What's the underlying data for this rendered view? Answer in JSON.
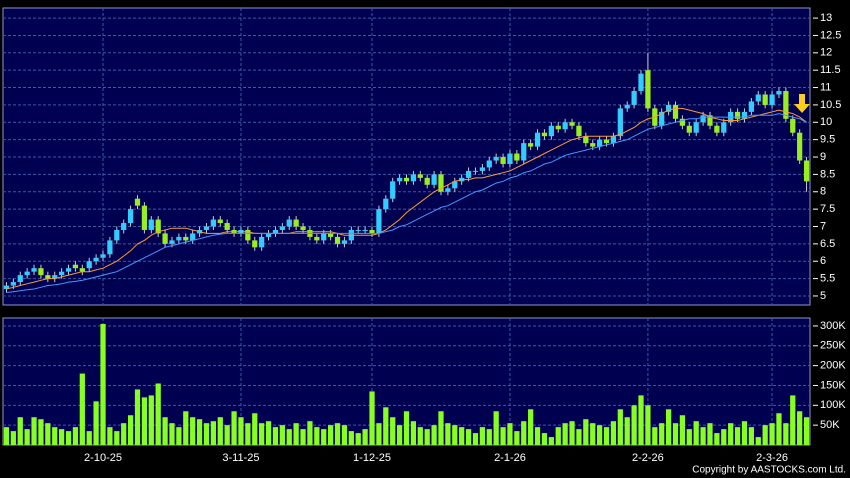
{
  "chart_data": {
    "type": "candlestick",
    "annotation": "Copyright by AASTOCKS.com Ltd.",
    "categories": [
      null,
      null,
      null,
      null,
      null,
      null,
      null,
      null,
      null,
      null,
      null,
      null,
      null,
      null,
      "2-10-25",
      null,
      null,
      null,
      null,
      null,
      null,
      null,
      null,
      null,
      null,
      null,
      null,
      null,
      null,
      null,
      null,
      null,
      null,
      null,
      "3-11-25",
      null,
      null,
      null,
      null,
      null,
      null,
      null,
      null,
      null,
      null,
      null,
      null,
      null,
      null,
      null,
      null,
      null,
      null,
      "1-12-25",
      null,
      null,
      null,
      null,
      null,
      null,
      null,
      null,
      null,
      null,
      null,
      null,
      null,
      null,
      null,
      null,
      null,
      null,
      null,
      "2-1-26",
      null,
      null,
      null,
      null,
      null,
      null,
      null,
      null,
      null,
      null,
      null,
      null,
      null,
      null,
      null,
      null,
      null,
      null,
      null,
      "2-2-26",
      null,
      null,
      null,
      null,
      null,
      null,
      null,
      null,
      null,
      null,
      null,
      null,
      null,
      null,
      null,
      null,
      null,
      "2-3-26",
      null,
      null,
      null,
      null,
      null
    ],
    "open": [
      5.2,
      5.3,
      5.4,
      5.6,
      5.7,
      5.8,
      5.6,
      5.5,
      5.6,
      5.7,
      5.9,
      5.8,
      5.8,
      6.0,
      6.1,
      6.2,
      6.6,
      6.9,
      7.1,
      7.8,
      7.6,
      6.9,
      7.2,
      6.8,
      6.5,
      6.6,
      6.7,
      6.6,
      6.8,
      6.9,
      7.0,
      7.2,
      7.1,
      6.9,
      6.8,
      6.9,
      6.6,
      6.4,
      6.7,
      6.8,
      6.9,
      7.0,
      7.2,
      7.0,
      6.9,
      6.7,
      6.6,
      6.8,
      6.7,
      6.5,
      6.6,
      6.9,
      6.9,
      6.9,
      6.8,
      7.5,
      7.8,
      8.3,
      8.4,
      8.3,
      8.5,
      8.4,
      8.2,
      8.5,
      8.0,
      8.1,
      8.3,
      8.4,
      8.6,
      8.6,
      8.7,
      8.9,
      9.0,
      8.8,
      9.1,
      8.9,
      9.4,
      9.3,
      9.7,
      9.6,
      9.9,
      9.8,
      10.0,
      9.9,
      9.6,
      9.4,
      9.3,
      9.5,
      9.4,
      9.6,
      10.4,
      10.5,
      10.9,
      11.5,
      10.4,
      9.9,
      10.3,
      10.5,
      10.1,
      9.9,
      9.7,
      10.0,
      10.2,
      9.9,
      9.7,
      10.0,
      10.3,
      10.1,
      10.3,
      10.6,
      10.8,
      10.5,
      10.8,
      10.9,
      10.1,
      9.7,
      8.9
    ],
    "high": [
      5.4,
      5.5,
      5.7,
      5.8,
      5.9,
      5.9,
      5.7,
      5.7,
      5.8,
      5.9,
      6.0,
      5.9,
      6.1,
      6.2,
      6.3,
      6.7,
      7.0,
      7.2,
      7.6,
      7.9,
      7.7,
      7.3,
      7.3,
      6.9,
      6.7,
      6.8,
      6.8,
      6.9,
      7.0,
      7.1,
      7.3,
      7.3,
      7.2,
      7.0,
      7.0,
      7.0,
      6.7,
      6.8,
      6.9,
      7.0,
      7.1,
      7.3,
      7.3,
      7.1,
      7.0,
      6.8,
      6.9,
      6.9,
      6.8,
      6.7,
      7.0,
      7.0,
      7.0,
      7.0,
      7.6,
      7.9,
      8.4,
      8.5,
      8.5,
      8.6,
      8.6,
      8.5,
      8.6,
      8.6,
      8.2,
      8.4,
      8.5,
      8.7,
      8.7,
      8.8,
      9.0,
      9.1,
      9.1,
      9.2,
      9.2,
      9.5,
      9.5,
      9.8,
      9.8,
      10.0,
      10.0,
      10.1,
      10.1,
      10.0,
      9.7,
      9.5,
      9.6,
      9.6,
      9.7,
      10.5,
      10.6,
      11.0,
      11.5,
      12.0,
      10.5,
      10.4,
      10.6,
      10.6,
      10.2,
      10.0,
      10.1,
      10.3,
      10.3,
      10.0,
      10.1,
      10.4,
      10.4,
      10.4,
      10.7,
      10.9,
      10.9,
      10.9,
      11.0,
      11.0,
      10.2,
      9.8,
      9.0
    ],
    "low": [
      5.1,
      5.2,
      5.3,
      5.5,
      5.6,
      5.5,
      5.4,
      5.4,
      5.5,
      5.6,
      5.7,
      5.6,
      5.7,
      5.9,
      6.0,
      6.1,
      6.5,
      6.8,
      7.0,
      7.5,
      6.8,
      6.8,
      6.7,
      6.4,
      6.4,
      6.5,
      6.5,
      6.5,
      6.7,
      6.8,
      6.9,
      7.0,
      6.8,
      6.7,
      6.7,
      6.5,
      6.3,
      6.3,
      6.6,
      6.7,
      6.8,
      6.9,
      6.9,
      6.8,
      6.6,
      6.5,
      6.5,
      6.6,
      6.4,
      6.4,
      6.5,
      6.8,
      6.8,
      6.7,
      6.7,
      7.4,
      7.7,
      8.2,
      8.2,
      8.2,
      8.3,
      8.1,
      8.1,
      7.9,
      7.9,
      8.0,
      8.2,
      8.3,
      8.5,
      8.5,
      8.6,
      8.8,
      8.7,
      8.7,
      8.8,
      8.8,
      9.2,
      9.2,
      9.5,
      9.5,
      9.7,
      9.7,
      9.8,
      9.5,
      9.3,
      9.2,
      9.2,
      9.3,
      9.3,
      9.5,
      10.3,
      10.4,
      10.8,
      10.3,
      9.8,
      9.8,
      10.2,
      10.0,
      9.8,
      9.6,
      9.6,
      9.9,
      9.8,
      9.6,
      9.6,
      9.9,
      10.0,
      10.0,
      10.2,
      10.5,
      10.4,
      10.4,
      10.7,
      10.0,
      9.6,
      8.8,
      8.0
    ],
    "close": [
      5.3,
      5.4,
      5.6,
      5.7,
      5.8,
      5.6,
      5.5,
      5.6,
      5.7,
      5.8,
      5.8,
      5.7,
      6.0,
      6.1,
      6.2,
      6.6,
      6.9,
      7.1,
      7.5,
      7.6,
      6.9,
      7.2,
      6.8,
      6.5,
      6.6,
      6.7,
      6.6,
      6.8,
      6.9,
      7.0,
      7.2,
      7.1,
      6.9,
      6.8,
      6.9,
      6.6,
      6.4,
      6.7,
      6.8,
      6.9,
      7.0,
      7.2,
      7.0,
      6.9,
      6.7,
      6.6,
      6.8,
      6.7,
      6.5,
      6.6,
      6.9,
      6.9,
      6.9,
      6.8,
      7.5,
      7.8,
      8.3,
      8.4,
      8.3,
      8.5,
      8.4,
      8.2,
      8.5,
      8.0,
      8.1,
      8.3,
      8.4,
      8.6,
      8.6,
      8.7,
      8.9,
      9.0,
      8.8,
      9.1,
      8.9,
      9.4,
      9.3,
      9.7,
      9.6,
      9.9,
      9.8,
      10.0,
      9.9,
      9.6,
      9.4,
      9.3,
      9.5,
      9.4,
      9.6,
      10.4,
      10.5,
      10.9,
      11.4,
      10.4,
      9.9,
      10.3,
      10.5,
      10.1,
      9.9,
      9.7,
      10.0,
      10.2,
      9.9,
      9.7,
      10.0,
      10.3,
      10.1,
      10.3,
      10.6,
      10.8,
      10.5,
      10.8,
      10.9,
      10.1,
      9.7,
      8.9,
      8.3
    ],
    "up_color": "#33ccff",
    "down_color": "#99ee22",
    "series": [
      {
        "color": "#ff9933",
        "values": [
          5.2,
          5.25,
          5.3,
          5.35,
          5.4,
          5.45,
          5.5,
          5.5,
          5.55,
          5.6,
          5.65,
          5.7,
          5.7,
          5.75,
          5.8,
          5.9,
          6.0,
          6.15,
          6.3,
          6.5,
          6.6,
          6.75,
          6.85,
          6.9,
          6.95,
          6.95,
          6.95,
          6.9,
          6.85,
          6.8,
          6.8,
          6.8,
          6.85,
          6.85,
          6.85,
          6.85,
          6.8,
          6.8,
          6.8,
          6.8,
          6.8,
          6.8,
          6.85,
          6.85,
          6.85,
          6.85,
          6.85,
          6.85,
          6.8,
          6.75,
          6.75,
          6.75,
          6.75,
          6.75,
          6.8,
          6.9,
          7.05,
          7.2,
          7.4,
          7.55,
          7.7,
          7.85,
          8.0,
          8.1,
          8.2,
          8.3,
          8.35,
          8.35,
          8.4,
          8.4,
          8.45,
          8.5,
          8.55,
          8.6,
          8.7,
          8.8,
          8.9,
          9.0,
          9.1,
          9.2,
          9.3,
          9.4,
          9.5,
          9.55,
          9.6,
          9.6,
          9.6,
          9.6,
          9.6,
          9.65,
          9.75,
          9.85,
          10.0,
          10.1,
          10.15,
          10.25,
          10.35,
          10.4,
          10.4,
          10.35,
          10.3,
          10.25,
          10.15,
          10.1,
          10.05,
          10.05,
          10.05,
          10.1,
          10.15,
          10.2,
          10.25,
          10.3,
          10.35,
          10.3,
          10.25,
          10.15,
          10.0
        ]
      },
      {
        "color": "#4499ff",
        "values": [
          5.1,
          5.12,
          5.15,
          5.18,
          5.2,
          5.25,
          5.3,
          5.32,
          5.35,
          5.4,
          5.42,
          5.45,
          5.5,
          5.55,
          5.6,
          5.65,
          5.7,
          5.8,
          5.9,
          6.0,
          6.1,
          6.2,
          6.3,
          6.4,
          6.45,
          6.5,
          6.55,
          6.6,
          6.65,
          6.7,
          6.75,
          6.78,
          6.8,
          6.8,
          6.8,
          6.8,
          6.8,
          6.8,
          6.8,
          6.8,
          6.8,
          6.8,
          6.8,
          6.8,
          6.8,
          6.8,
          6.8,
          6.8,
          6.8,
          6.8,
          6.8,
          6.8,
          6.8,
          6.8,
          6.8,
          6.85,
          6.9,
          7.0,
          7.05,
          7.15,
          7.25,
          7.35,
          7.45,
          7.55,
          7.6,
          7.7,
          7.8,
          7.9,
          8.0,
          8.05,
          8.15,
          8.25,
          8.3,
          8.4,
          8.45,
          8.55,
          8.6,
          8.7,
          8.8,
          8.85,
          8.95,
          9.05,
          9.1,
          9.15,
          9.2,
          9.25,
          9.3,
          9.35,
          9.4,
          9.45,
          9.5,
          9.6,
          9.7,
          9.8,
          9.85,
          9.9,
          9.95,
          10.0,
          10.05,
          10.1,
          10.1,
          10.15,
          10.15,
          10.15,
          10.15,
          10.15,
          10.15,
          10.15,
          10.2,
          10.2,
          10.2,
          10.2,
          10.25,
          10.2,
          10.15,
          10.1,
          10.0
        ]
      }
    ],
    "ylim": [
      4.74,
      13.29
    ],
    "yticks": [
      5,
      5.5,
      6,
      6.5,
      7,
      7.5,
      8,
      8.5,
      9,
      9.5,
      10,
      10.5,
      11,
      11.5,
      12,
      12.5,
      13
    ],
    "grid": true,
    "volume": {
      "color": "#88ff22",
      "values": [
        45000,
        35000,
        70000,
        40000,
        70000,
        65000,
        55000,
        45000,
        40000,
        35000,
        45000,
        180000,
        35000,
        110000,
        305000,
        45000,
        35000,
        55000,
        75000,
        140000,
        120000,
        125000,
        155000,
        70000,
        55000,
        45000,
        85000,
        70000,
        65000,
        55000,
        60000,
        70000,
        50000,
        85000,
        70000,
        55000,
        80000,
        55000,
        60000,
        45000,
        50000,
        40000,
        55000,
        40000,
        60000,
        45000,
        40000,
        50000,
        55000,
        50000,
        35000,
        30000,
        40000,
        135000,
        55000,
        95000,
        70000,
        50000,
        85000,
        60000,
        45000,
        40000,
        50000,
        85000,
        55000,
        50000,
        45000,
        40000,
        30000,
        45000,
        40000,
        85000,
        45000,
        55000,
        35000,
        60000,
        90000,
        45000,
        30000,
        20000,
        45000,
        55000,
        60000,
        40000,
        65000,
        55000,
        50000,
        45000,
        60000,
        90000,
        70000,
        100000,
        125000,
        100000,
        45000,
        55000,
        90000,
        55000,
        75000,
        40000,
        60000,
        45000,
        55000,
        30000,
        40000,
        55000,
        45000,
        60000,
        45000,
        20000,
        50000,
        55000,
        80000,
        55000,
        125000,
        85000,
        70000
      ],
      "ylim": [
        0,
        320000
      ],
      "yticks": [
        {
          "value": 50000,
          "label": "50K"
        },
        {
          "value": 100000,
          "label": "100K"
        },
        {
          "value": 150000,
          "label": "150K"
        },
        {
          "value": 200000,
          "label": "200K"
        },
        {
          "value": 250000,
          "label": "250K"
        },
        {
          "value": 300000,
          "label": "300K"
        }
      ]
    }
  }
}
